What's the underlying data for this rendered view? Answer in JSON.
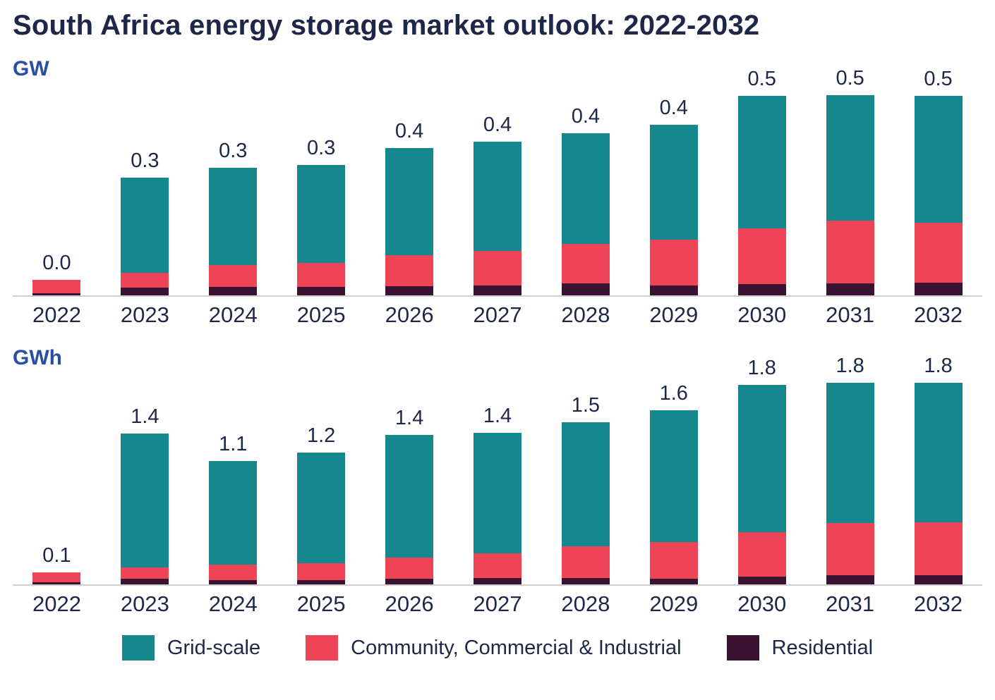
{
  "title": "South Africa energy storage market outlook: 2022-2032",
  "colors": {
    "grid_scale": "#16878c",
    "cci": "#ef4356",
    "residential": "#3a1333",
    "title_text": "#1e2747",
    "unit_label_text": "#2a4fa0",
    "axis_line": "#cfcfcf"
  },
  "legend": [
    {
      "key": "grid_scale",
      "label": "Grid-scale",
      "color": "#16878c"
    },
    {
      "key": "cci",
      "label": "Community, Commercial & Industrial",
      "color": "#ef4356"
    },
    {
      "key": "residential",
      "label": "Residential",
      "color": "#3a1333"
    }
  ],
  "chart_data": [
    {
      "type": "bar",
      "stacked": true,
      "unit": "GW",
      "categories": [
        "2022",
        "2023",
        "2024",
        "2025",
        "2026",
        "2027",
        "2028",
        "2029",
        "2030",
        "2031",
        "2032"
      ],
      "totals_labels": [
        "0.0",
        "0.3",
        "0.3",
        "0.3",
        "0.4",
        "0.4",
        "0.4",
        "0.4",
        "0.5",
        "0.5",
        "0.5"
      ],
      "series": [
        {
          "key": "residential",
          "name": "Residential",
          "values": [
            0.005,
            0.02,
            0.022,
            0.022,
            0.023,
            0.025,
            0.03,
            0.025,
            0.028,
            0.03,
            0.032
          ]
        },
        {
          "key": "cci",
          "name": "Community, Commercial & Industrial",
          "values": [
            0.033,
            0.038,
            0.056,
            0.06,
            0.078,
            0.088,
            0.1,
            0.115,
            0.14,
            0.158,
            0.152
          ]
        },
        {
          "key": "grid_scale",
          "name": "Grid-scale",
          "values": [
            0.0,
            0.24,
            0.245,
            0.248,
            0.27,
            0.275,
            0.28,
            0.29,
            0.335,
            0.317,
            0.32
          ]
        }
      ],
      "ylim": [
        0,
        0.53
      ],
      "grid": false,
      "legend_position": "bottom"
    },
    {
      "type": "bar",
      "stacked": true,
      "unit": "GWh",
      "categories": [
        "2022",
        "2023",
        "2024",
        "2025",
        "2026",
        "2027",
        "2028",
        "2029",
        "2030",
        "2031",
        "2032"
      ],
      "totals_labels": [
        "0.1",
        "1.4",
        "1.1",
        "1.2",
        "1.4",
        "1.4",
        "1.5",
        "1.6",
        "1.8",
        "1.8",
        "1.8"
      ],
      "series": [
        {
          "key": "residential",
          "name": "Residential",
          "values": [
            0.02,
            0.05,
            0.04,
            0.04,
            0.05,
            0.06,
            0.06,
            0.05,
            0.07,
            0.08,
            0.08
          ]
        },
        {
          "key": "cci",
          "name": "Community, Commercial & Industrial",
          "values": [
            0.09,
            0.1,
            0.14,
            0.15,
            0.19,
            0.22,
            0.29,
            0.33,
            0.4,
            0.47,
            0.48
          ]
        },
        {
          "key": "grid_scale",
          "name": "Grid-scale",
          "values": [
            0.0,
            1.21,
            0.94,
            1.0,
            1.11,
            1.09,
            1.12,
            1.19,
            1.33,
            1.27,
            1.26
          ]
        }
      ],
      "ylim": [
        0,
        1.9
      ],
      "grid": false,
      "legend_position": "bottom"
    }
  ]
}
